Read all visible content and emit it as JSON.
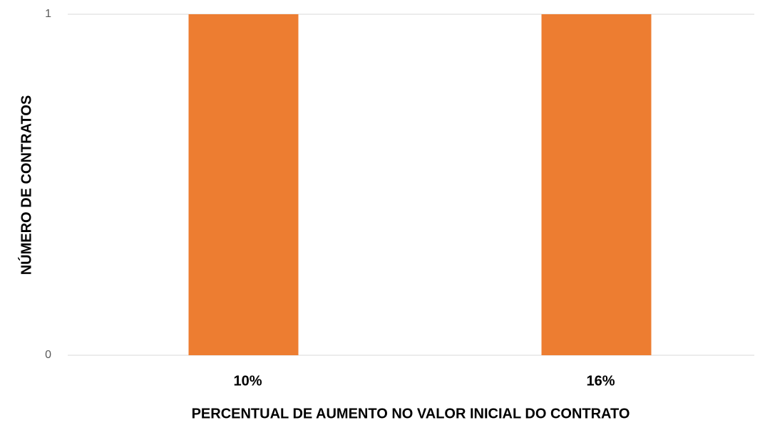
{
  "chart_data": {
    "type": "bar",
    "x_label": "PERCENTUAL DE AUMENTO NO VALOR INICIAL DO CONTRATO",
    "y_label": "NÚMERO  DE CONTRATOS",
    "categories": [
      "10%",
      "16%"
    ],
    "values": [
      1,
      1
    ],
    "color": "#ed7d31",
    "ylim": [
      0,
      1
    ],
    "yticks": [
      0,
      1
    ],
    "grid": true
  }
}
